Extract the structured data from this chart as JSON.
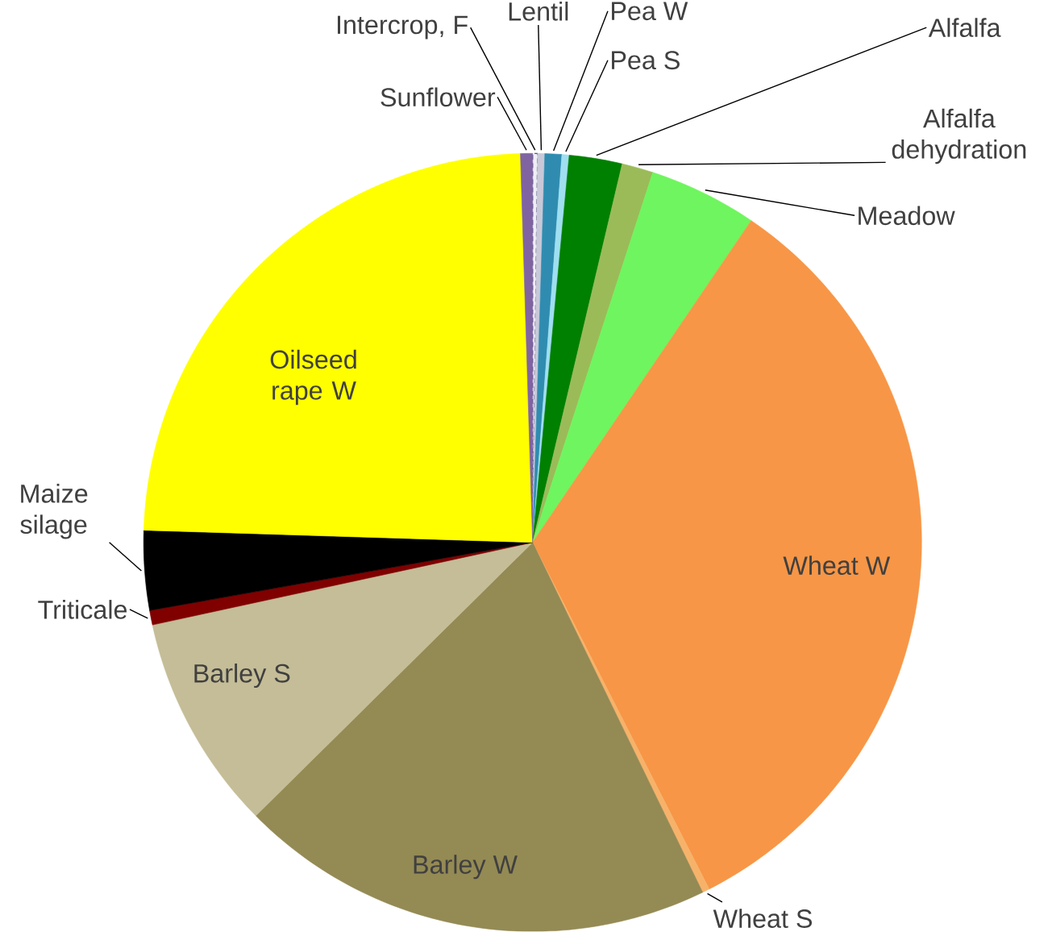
{
  "chart_data": {
    "type": "pie",
    "categories": [
      "Intercrop, F",
      "Lentil",
      "Pea W",
      "Pea S",
      "Alfalfa",
      "Alfalfa dehydration",
      "Meadow",
      "Wheat W",
      "Wheat S",
      "Barley W",
      "Barley S",
      "Triticale",
      "Maize silage",
      "Oilseed rape W",
      "Sunflower"
    ],
    "values": [
      0.2,
      0.3,
      0.7,
      0.3,
      2.2,
      1.3,
      4.5,
      33.0,
      0.3,
      19.8,
      9.0,
      0.6,
      3.3,
      24.0,
      0.5
    ],
    "colors": [
      "#eeeef6",
      "#c8c8d8",
      "#2f8cb0",
      "#9fdff0",
      "#008000",
      "#9bbb59",
      "#6ff55f",
      "#f79646",
      "#f7b26a",
      "#948a54",
      "#c4bd97",
      "#800000",
      "#000000",
      "#ffff00",
      "#8064a2"
    ]
  }
}
